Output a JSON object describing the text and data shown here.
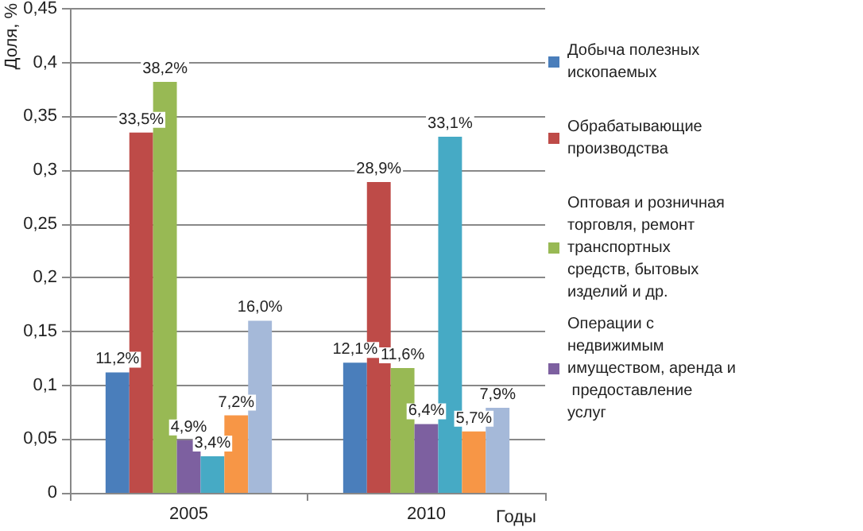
{
  "chart_data": {
    "type": "bar",
    "ylabel": "Доля, %",
    "xlabel": "Годы",
    "categories": [
      "2005",
      "2010"
    ],
    "ylim": [
      0,
      0.45
    ],
    "yticks": [
      0,
      {
        "value": 0.05,
        "label": "0,05"
      },
      {
        "value": 0.1,
        "label": "0,1"
      },
      {
        "value": 0.15,
        "label": "0,15"
      },
      {
        "value": 0.2,
        "label": "0,2"
      },
      {
        "value": 0.25,
        "label": "0,25"
      },
      {
        "value": 0.3,
        "label": "0,3"
      },
      {
        "value": 0.35,
        "label": "0,35"
      },
      {
        "value": 0.4,
        "label": "0,4"
      },
      {
        "value": 0.45,
        "label": "0,45"
      }
    ],
    "grid": "y",
    "legend": "right",
    "series": [
      {
        "name": "Добыча полезных ископаемых",
        "color": "#4a7ebb",
        "values": [
          0.112,
          0.121
        ],
        "value_labels": [
          "11,2%",
          "12,1%"
        ]
      },
      {
        "name": "Обрабатывающие производства",
        "color": "#be4b48",
        "values": [
          0.335,
          0.289
        ],
        "value_labels": [
          "33,5%",
          "28,9%"
        ]
      },
      {
        "name": "Оптовая и розничная торговля, ремонт транспортных средств, бытовых изделий и др.",
        "color": "#98b954",
        "values": [
          0.382,
          0.116
        ],
        "value_labels": [
          "38,2%",
          "11,6%"
        ]
      },
      {
        "name": "Операции с недвижимым имуществом, аренда и предоставление услуг",
        "color": "#7d60a0",
        "values": [
          0.049,
          0.064
        ],
        "value_labels": [
          "4,9%",
          "6,4%"
        ]
      },
      {
        "color": "#46aac5",
        "values": [
          0.034,
          0.331
        ],
        "value_labels": [
          "3,4%",
          "33,1%"
        ]
      },
      {
        "color": "#f79646",
        "values": [
          0.072,
          0.057
        ],
        "value_labels": [
          "7,2%",
          "5,7%"
        ]
      },
      {
        "color": "#a5b9d9",
        "values": [
          0.16,
          0.079
        ],
        "value_labels": [
          "16,0%",
          "7,9%"
        ]
      }
    ]
  }
}
